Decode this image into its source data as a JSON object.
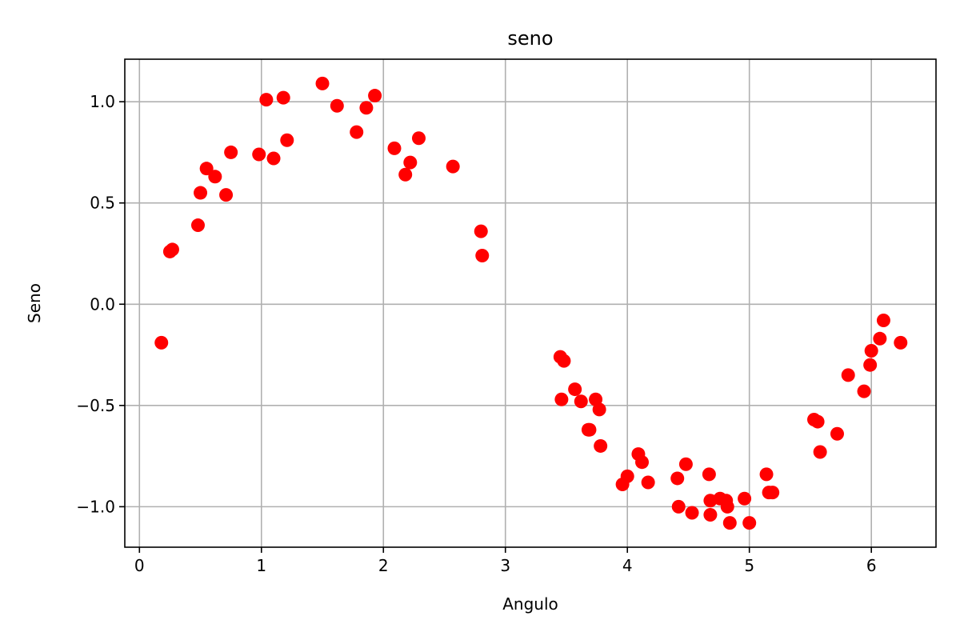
{
  "chart_data": {
    "type": "scatter",
    "title": "seno",
    "xlabel": "Angulo",
    "ylabel": "Seno",
    "xlim": [
      -0.12,
      6.53
    ],
    "ylim": [
      -1.2,
      1.21
    ],
    "xticks": [
      0,
      1,
      2,
      3,
      4,
      5,
      6
    ],
    "xtick_labels": [
      "0",
      "1",
      "2",
      "3",
      "4",
      "5",
      "6"
    ],
    "yticks": [
      -1.0,
      -0.5,
      0.0,
      0.5,
      1.0
    ],
    "ytick_labels": [
      "−1.0",
      "−0.5",
      "0.0",
      "0.5",
      "1.0"
    ],
    "grid": true,
    "marker_color": "#ff0000",
    "series": [
      {
        "points": [
          [
            0.18,
            -0.19
          ],
          [
            0.25,
            0.26
          ],
          [
            0.27,
            0.27
          ],
          [
            0.48,
            0.39
          ],
          [
            0.5,
            0.55
          ],
          [
            0.55,
            0.67
          ],
          [
            0.62,
            0.63
          ],
          [
            0.71,
            0.54
          ],
          [
            0.75,
            0.75
          ],
          [
            0.98,
            0.74
          ],
          [
            1.04,
            1.01
          ],
          [
            1.1,
            0.72
          ],
          [
            1.18,
            1.02
          ],
          [
            1.21,
            0.81
          ],
          [
            1.5,
            1.09
          ],
          [
            1.62,
            0.98
          ],
          [
            1.78,
            0.85
          ],
          [
            1.86,
            0.97
          ],
          [
            1.93,
            1.03
          ],
          [
            2.09,
            0.77
          ],
          [
            2.18,
            0.64
          ],
          [
            2.22,
            0.7
          ],
          [
            2.29,
            0.82
          ],
          [
            2.57,
            0.68
          ],
          [
            2.8,
            0.36
          ],
          [
            2.81,
            0.24
          ],
          [
            3.45,
            -0.26
          ],
          [
            3.46,
            -0.47
          ],
          [
            3.48,
            -0.28
          ],
          [
            3.57,
            -0.42
          ],
          [
            3.62,
            -0.48
          ],
          [
            3.68,
            -0.62
          ],
          [
            3.69,
            -0.62
          ],
          [
            3.74,
            -0.47
          ],
          [
            3.77,
            -0.52
          ],
          [
            3.78,
            -0.7
          ],
          [
            3.96,
            -0.89
          ],
          [
            4.0,
            -0.85
          ],
          [
            4.09,
            -0.74
          ],
          [
            4.12,
            -0.78
          ],
          [
            4.17,
            -0.88
          ],
          [
            4.41,
            -0.86
          ],
          [
            4.42,
            -1.0
          ],
          [
            4.48,
            -0.79
          ],
          [
            4.53,
            -1.03
          ],
          [
            4.67,
            -0.84
          ],
          [
            4.68,
            -0.97
          ],
          [
            4.68,
            -1.04
          ],
          [
            4.76,
            -0.96
          ],
          [
            4.81,
            -0.97
          ],
          [
            4.82,
            -1.0
          ],
          [
            4.84,
            -1.08
          ],
          [
            4.96,
            -0.96
          ],
          [
            5.0,
            -1.08
          ],
          [
            5.14,
            -0.84
          ],
          [
            5.16,
            -0.93
          ],
          [
            5.19,
            -0.93
          ],
          [
            5.53,
            -0.57
          ],
          [
            5.56,
            -0.58
          ],
          [
            5.58,
            -0.73
          ],
          [
            5.72,
            -0.64
          ],
          [
            5.81,
            -0.35
          ],
          [
            5.94,
            -0.43
          ],
          [
            5.99,
            -0.3
          ],
          [
            6.0,
            -0.23
          ],
          [
            6.07,
            -0.17
          ],
          [
            6.1,
            -0.08
          ],
          [
            6.24,
            -0.19
          ]
        ]
      }
    ]
  }
}
